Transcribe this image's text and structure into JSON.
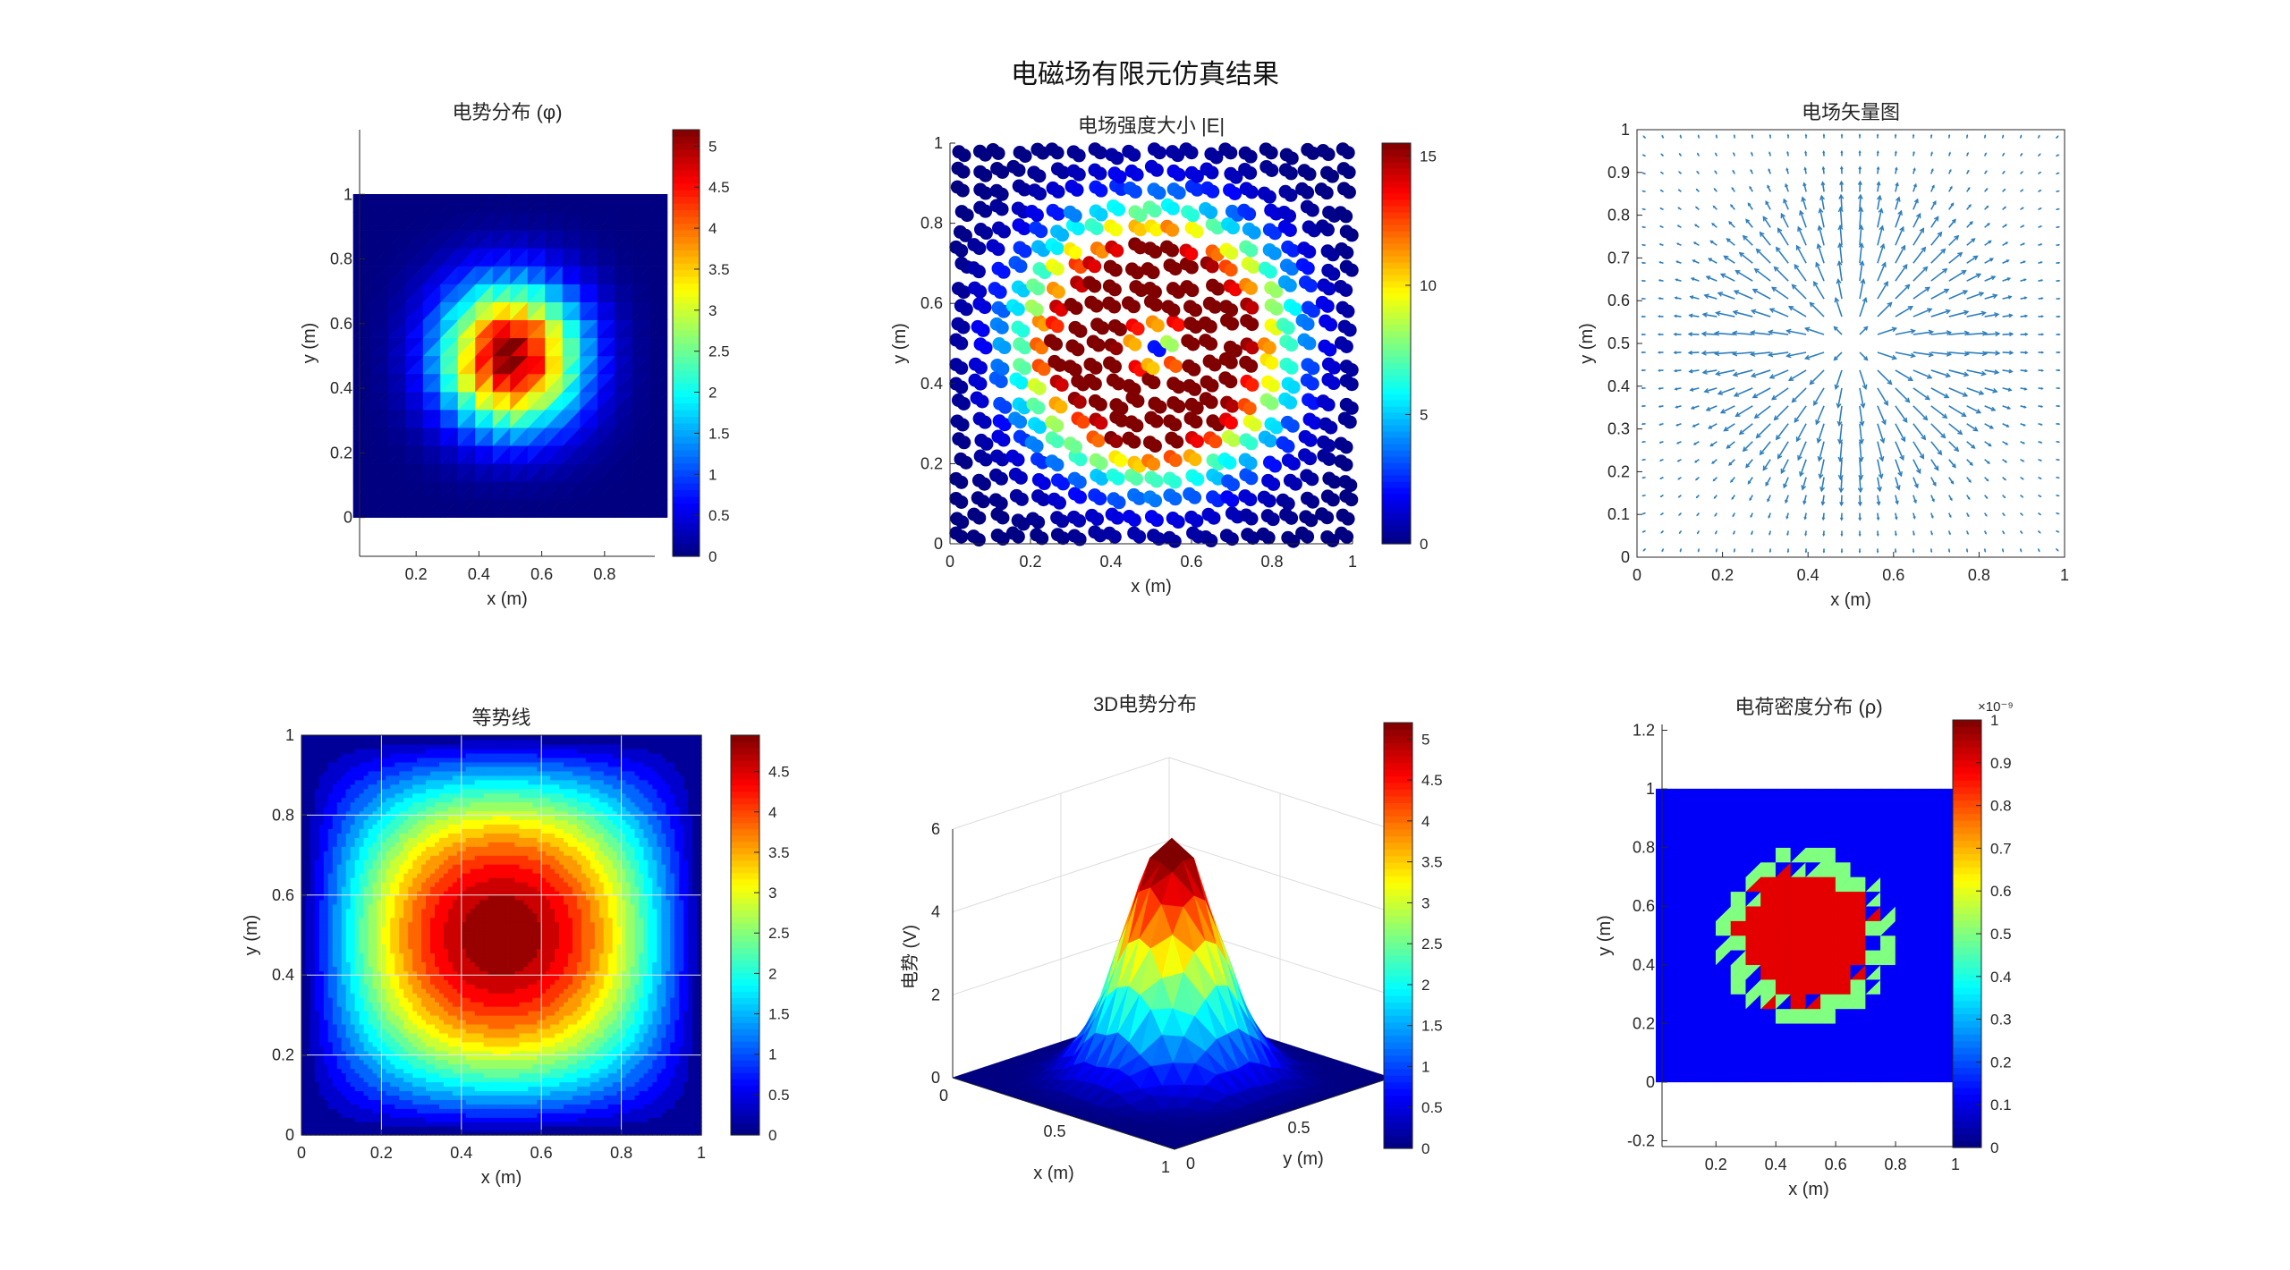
{
  "figure": {
    "title": "电磁场有限元仿真结果"
  },
  "colors": {
    "jet": [
      "#00008f",
      "#0000ff",
      "#00ffff",
      "#ffff00",
      "#ff0000",
      "#800000"
    ],
    "quiver": "#2f7fbd",
    "grid": "#e6e6e6",
    "axis": "#262626"
  },
  "chart_data": [
    {
      "id": "potential",
      "type": "heatmap",
      "title": "电势分布 (φ)",
      "xlabel": "x (m)",
      "ylabel": "y (m)",
      "xlim": [
        0.02,
        0.96
      ],
      "ylim": [
        -0.12,
        1.2
      ],
      "xticks": [
        "0.2",
        "0.4",
        "0.6",
        "0.8"
      ],
      "yticks": [
        "0",
        "0.2",
        "0.4",
        "0.6",
        "0.8",
        "1"
      ],
      "data_range": {
        "x": [
          0,
          1
        ],
        "y": [
          0,
          1
        ]
      },
      "field": "potential",
      "clim": [
        0,
        5.2
      ],
      "cticks": [
        "0",
        "0.5",
        "1",
        "1.5",
        "2",
        "2.5",
        "3",
        "3.5",
        "4",
        "4.5",
        "5"
      ]
    },
    {
      "id": "efield",
      "type": "scatter",
      "title": "电场强度大小 |E|",
      "xlabel": "x (m)",
      "ylabel": "y (m)",
      "xlim": [
        0,
        1
      ],
      "ylim": [
        0,
        1
      ],
      "xticks": [
        "0",
        "0.2",
        "0.4",
        "0.6",
        "0.8",
        "1"
      ],
      "yticks": [
        "0",
        "0.2",
        "0.4",
        "0.6",
        "0.8",
        "1"
      ],
      "field": "efield",
      "clim": [
        0,
        15.5
      ],
      "cticks": [
        "0",
        "5",
        "10",
        "15"
      ]
    },
    {
      "id": "vector",
      "type": "scatter",
      "title": "电场矢量图",
      "xlabel": "x (m)",
      "ylabel": "y (m)",
      "xlim": [
        0,
        1
      ],
      "ylim": [
        0,
        1
      ],
      "xticks": [
        "0",
        "0.2",
        "0.4",
        "0.6",
        "0.8",
        "1"
      ],
      "yticks": [
        "0",
        "0.1",
        "0.2",
        "0.3",
        "0.4",
        "0.5",
        "0.6",
        "0.7",
        "0.8",
        "0.9",
        "1"
      ],
      "field": "quiver"
    },
    {
      "id": "contour",
      "type": "heatmap",
      "title": "等势线",
      "xlabel": "x (m)",
      "ylabel": "y (m)",
      "xlim": [
        0,
        1
      ],
      "ylim": [
        0,
        1
      ],
      "xticks": [
        "0",
        "0.2",
        "0.4",
        "0.6",
        "0.8",
        "1"
      ],
      "yticks": [
        "0",
        "0.2",
        "0.4",
        "0.6",
        "0.8",
        "1"
      ],
      "field": "contour",
      "clim": [
        0,
        4.95
      ],
      "cticks": [
        "0",
        "0.5",
        "1",
        "1.5",
        "2",
        "2.5",
        "3",
        "3.5",
        "4",
        "4.5"
      ]
    },
    {
      "id": "surface3d",
      "type": "area",
      "title": "3D电势分布",
      "xlabel": "x (m)",
      "ylabel": "y (m)",
      "zlabel": "电势 (V)",
      "zlim": [
        0,
        6
      ],
      "xticks": [
        "0",
        "0.5",
        "1"
      ],
      "yticks": [
        "0",
        "0.5",
        "1"
      ],
      "zticks": [
        "0",
        "2",
        "4",
        "6"
      ],
      "field": "potential",
      "clim": [
        0,
        5.2
      ],
      "cticks": [
        "0",
        "0.5",
        "1",
        "1.5",
        "2",
        "2.5",
        "3",
        "3.5",
        "4",
        "4.5",
        "5"
      ]
    },
    {
      "id": "charge",
      "type": "heatmap",
      "title": "电荷密度分布 (ρ)",
      "xlabel": "x (m)",
      "ylabel": "y (m)",
      "xlim": [
        0.02,
        1.0
      ],
      "ylim": [
        -0.22,
        1.22
      ],
      "xticks": [
        "0.2",
        "0.4",
        "0.6",
        "0.8",
        "1"
      ],
      "yticks": [
        "-0.2",
        "0",
        "0.2",
        "0.4",
        "0.6",
        "0.8",
        "1",
        "1.2"
      ],
      "data_range": {
        "x": [
          0,
          1
        ],
        "y": [
          0,
          1
        ]
      },
      "field": "charge",
      "clim": [
        0,
        1
      ],
      "cticks": [
        "0",
        "0.1",
        "0.2",
        "0.3",
        "0.4",
        "0.5",
        "0.6",
        "0.7",
        "0.8",
        "0.9",
        "1"
      ],
      "cexponent": "×10⁻⁹"
    }
  ]
}
